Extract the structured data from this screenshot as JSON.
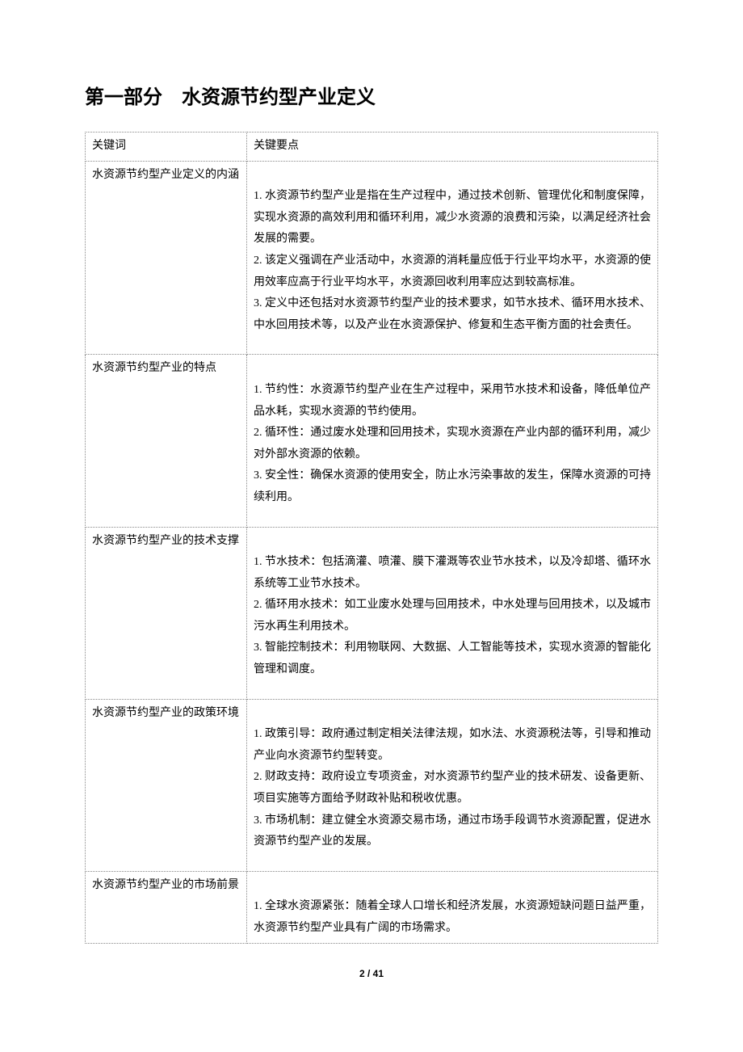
{
  "title": "第一部分　水资源节约型产业定义",
  "footer": "2 / 41",
  "headers": {
    "keyword": "关键词",
    "keypoint": "关键要点"
  },
  "rows": [
    {
      "keyword": "水资源节约型产业定义的内涵",
      "keypoint": "\n1. 水资源节约型产业是指在生产过程中，通过技术创新、管理优化和制度保障，实现水资源的高效利用和循环利用，减少水资源的浪费和污染，以满足经济社会发展的需要。\n2. 该定义强调在产业活动中，水资源的消耗量应低于行业平均水平，水资源的使用效率应高于行业平均水平，水资源回收利用率应达到较高标准。\n3. 定义中还包括对水资源节约型产业的技术要求，如节水技术、循环用水技术、中水回用技术等，以及产业在水资源保护、修复和生态平衡方面的社会责任。"
    },
    {
      "keyword": "水资源节约型产业的特点",
      "keypoint": "\n1. 节约性：水资源节约型产业在生产过程中，采用节水技术和设备，降低单位产品水耗，实现水资源的节约使用。\n2. 循环性：通过废水处理和回用技术，实现水资源在产业内部的循环利用，减少对外部水资源的依赖。\n3. 安全性：确保水资源的使用安全，防止水污染事故的发生，保障水资源的可持续利用。"
    },
    {
      "keyword": "水资源节约型产业的技术支撑",
      "keypoint": "\n1. 节水技术：包括滴灌、喷灌、膜下灌溉等农业节水技术，以及冷却塔、循环水系统等工业节水技术。\n2. 循环用水技术：如工业废水处理与回用技术，中水处理与回用技术，以及城市污水再生利用技术。\n3. 智能控制技术：利用物联网、大数据、人工智能等技术，实现水资源的智能化管理和调度。"
    },
    {
      "keyword": "水资源节约型产业的政策环境",
      "keypoint": "\n1. 政策引导：政府通过制定相关法律法规，如水法、水资源税法等，引导和推动产业向水资源节约型转变。\n2. 财政支持：政府设立专项资金，对水资源节约型产业的技术研发、设备更新、项目实施等方面给予财政补贴和税收优惠。\n3. 市场机制：建立健全水资源交易市场，通过市场手段调节水资源配置，促进水资源节约型产业的发展。"
    },
    {
      "keyword": "水资源节约型产业的市场前景",
      "keypoint": "\n1. 全球水资源紧张：随着全球人口增长和经济发展，水资源短缺问题日益严重，水资源节约型产业具有广阔的市场需求。"
    }
  ]
}
